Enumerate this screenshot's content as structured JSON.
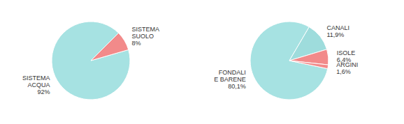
{
  "chart_data": [
    {
      "type": "pie",
      "categories": [
        "SISTEMA ACQUA",
        "SISTEMA SUOLO"
      ],
      "values": [
        92,
        8
      ],
      "value_labels": [
        "92%",
        "8%"
      ],
      "colors": [
        "#a6e2e2",
        "#f28a8a"
      ],
      "data_labels": true
    },
    {
      "type": "pie",
      "categories": [
        "FONDALI E BARENE",
        "CANALI",
        "ISOLE",
        "ARGINI"
      ],
      "values": [
        80.1,
        11.9,
        6.4,
        1.6
      ],
      "value_labels": [
        "80,1%",
        "11,9%",
        "6,4%",
        "1,6%"
      ],
      "colors": [
        "#a6e2e2",
        "#9edcdc",
        "#f28a8a",
        "#f28a8a"
      ],
      "data_labels": true
    }
  ]
}
